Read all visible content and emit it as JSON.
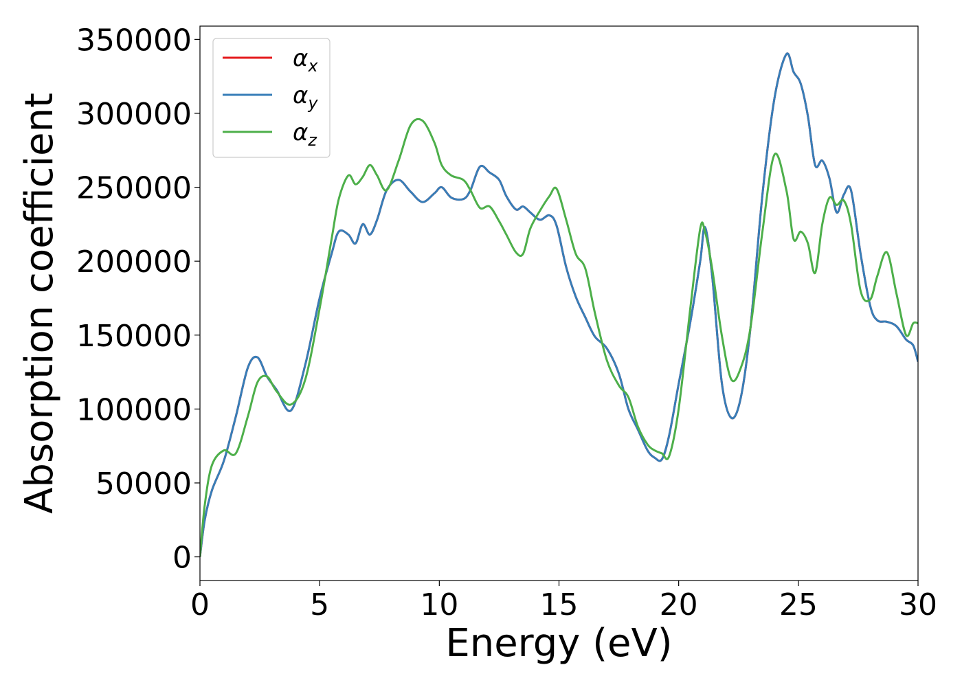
{
  "chart_data": {
    "type": "line",
    "title": "",
    "xlabel": "Energy (eV)",
    "ylabel": "Absorption coefficient",
    "xlim": [
      0,
      30
    ],
    "ylim": [
      -16000,
      359000
    ],
    "xticks": [
      0,
      5,
      10,
      15,
      20,
      25,
      30
    ],
    "yticks": [
      0,
      50000,
      100000,
      150000,
      200000,
      250000,
      300000,
      350000
    ],
    "grid": false,
    "legend_position": "top-left",
    "x": [
      0,
      0.2,
      0.5,
      1.0,
      1.5,
      2.0,
      2.4,
      2.8,
      3.2,
      3.8,
      4.4,
      5.0,
      5.5,
      5.8,
      6.2,
      6.5,
      6.8,
      7.1,
      7.4,
      7.8,
      8.3,
      8.8,
      9.3,
      9.8,
      10.1,
      10.5,
      11.0,
      11.3,
      11.7,
      12.1,
      12.5,
      12.8,
      13.2,
      13.5,
      13.8,
      14.2,
      14.6,
      14.9,
      15.3,
      15.7,
      16.1,
      16.5,
      17.0,
      17.5,
      17.9,
      18.3,
      18.7,
      19.0,
      19.3,
      19.6,
      20.0,
      20.5,
      20.9,
      21.1,
      21.4,
      21.8,
      22.2,
      22.6,
      23.0,
      23.5,
      24.0,
      24.5,
      24.8,
      25.1,
      25.4,
      25.7,
      26.0,
      26.3,
      26.6,
      26.9,
      27.2,
      27.6,
      28.0,
      28.3,
      28.7,
      29.1,
      29.5,
      29.8,
      30.0
    ],
    "series": [
      {
        "name": "αx",
        "color": "#e41a1c",
        "values": [
          0,
          25000,
          45000,
          65000,
          95000,
          128000,
          135000,
          122000,
          113000,
          99000,
          130000,
          175000,
          205000,
          220000,
          218000,
          212000,
          225000,
          218000,
          228000,
          248000,
          255000,
          247000,
          240000,
          246000,
          250000,
          243000,
          242000,
          248000,
          264000,
          260000,
          255000,
          244000,
          235000,
          237000,
          233000,
          228000,
          231000,
          224000,
          196000,
          176000,
          162000,
          149000,
          141000,
          124000,
          100000,
          86000,
          72000,
          67000,
          66000,
          82000,
          117000,
          160000,
          200000,
          223000,
          190000,
          118000,
          94000,
          108000,
          155000,
          245000,
          310000,
          340000,
          328000,
          320000,
          298000,
          265000,
          268000,
          256000,
          233000,
          245000,
          248000,
          205000,
          170000,
          160000,
          159000,
          156000,
          147000,
          143000,
          132000
        ]
      },
      {
        "name": "αy",
        "color": "#377eb8",
        "values": [
          0,
          25000,
          45000,
          65000,
          95000,
          128000,
          135000,
          122000,
          113000,
          99000,
          130000,
          175000,
          205000,
          220000,
          218000,
          212000,
          225000,
          218000,
          228000,
          248000,
          255000,
          247000,
          240000,
          246000,
          250000,
          243000,
          242000,
          248000,
          264000,
          260000,
          255000,
          244000,
          235000,
          237000,
          233000,
          228000,
          231000,
          224000,
          196000,
          176000,
          162000,
          149000,
          141000,
          124000,
          100000,
          86000,
          72000,
          67000,
          66000,
          82000,
          117000,
          160000,
          200000,
          223000,
          190000,
          118000,
          94000,
          108000,
          155000,
          245000,
          310000,
          340000,
          328000,
          320000,
          298000,
          265000,
          268000,
          256000,
          233000,
          245000,
          248000,
          205000,
          170000,
          160000,
          159000,
          156000,
          147000,
          143000,
          132000
        ]
      },
      {
        "name": "αz",
        "color": "#4daf4a",
        "values": [
          0,
          35000,
          62000,
          72000,
          70000,
          95000,
          118000,
          122000,
          112000,
          103000,
          120000,
          168000,
          215000,
          242000,
          258000,
          252000,
          257000,
          265000,
          258000,
          248000,
          268000,
          292000,
          295000,
          280000,
          265000,
          258000,
          255000,
          248000,
          236000,
          237000,
          227000,
          218000,
          206000,
          205000,
          222000,
          234000,
          244000,
          249000,
          228000,
          205000,
          195000,
          165000,
          133000,
          116000,
          108000,
          88000,
          76000,
          72000,
          70000,
          68000,
          100000,
          170000,
          222000,
          220000,
          195000,
          150000,
          120000,
          128000,
          155000,
          220000,
          272000,
          248000,
          215000,
          220000,
          212000,
          192000,
          225000,
          243000,
          238000,
          241000,
          225000,
          180000,
          174000,
          190000,
          206000,
          178000,
          150000,
          158000,
          158000
        ]
      }
    ]
  }
}
